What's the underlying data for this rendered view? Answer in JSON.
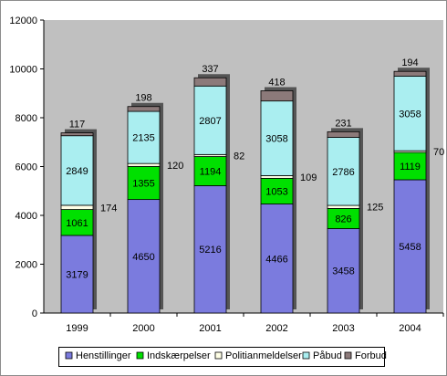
{
  "chart_data": {
    "type": "bar",
    "stacked": true,
    "categories": [
      "1999",
      "2000",
      "2001",
      "2002",
      "2003",
      "2004"
    ],
    "series": [
      {
        "name": "Henstillinger",
        "color": "#7b7bde",
        "values": [
          3179,
          4650,
          5216,
          4466,
          3458,
          5458
        ]
      },
      {
        "name": "Indskærpelser",
        "color": "#00e000",
        "values": [
          1061,
          1355,
          1194,
          1053,
          826,
          1119
        ]
      },
      {
        "name": "Politianmeldelser",
        "color": "#ffffe6",
        "values": [
          174,
          120,
          82,
          109,
          125,
          70
        ]
      },
      {
        "name": "Påbud",
        "color": "#aaeef0",
        "values": [
          2849,
          2135,
          2807,
          3058,
          2786,
          3058
        ]
      },
      {
        "name": "Forbud",
        "color": "#8c7a7a",
        "values": [
          117,
          198,
          337,
          418,
          231,
          194
        ]
      }
    ],
    "ylim": [
      0,
      12000
    ],
    "yticks": [
      "0",
      "2000",
      "4000",
      "6000",
      "8000",
      "10000",
      "12000"
    ],
    "grid": false,
    "plot_background": "#c0c0c0",
    "legend_position": "bottom",
    "title": "",
    "xlabel": "",
    "ylabel": ""
  }
}
